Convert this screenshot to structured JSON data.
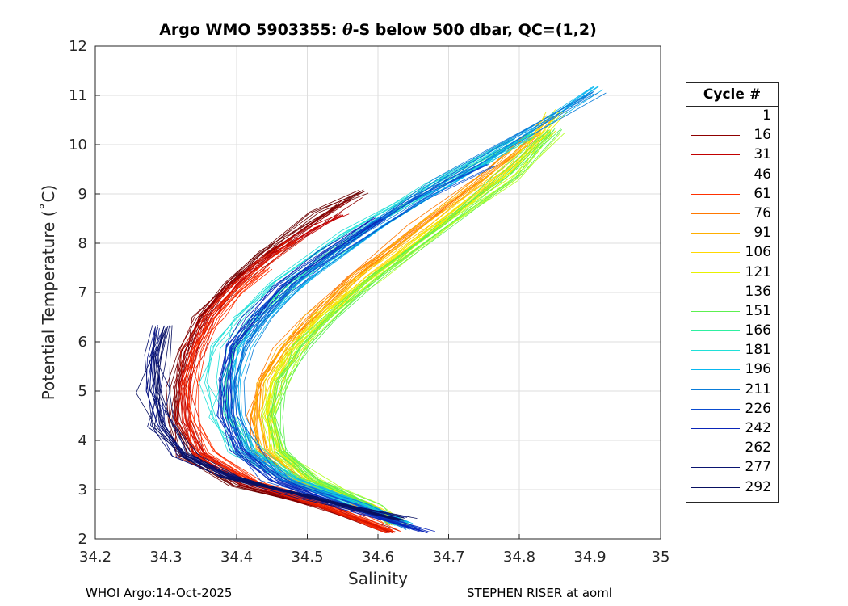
{
  "chart_data": {
    "type": "line",
    "title_prefix": "Argo WMO 5903355: ",
    "title_theta": "θ",
    "title_suffix": "-S below 500 dbar,  QC=(1,2)",
    "xlabel": "Salinity",
    "ylabel": "Potential Temperature (˚C)",
    "xlim": [
      34.2,
      35.0
    ],
    "ylim": [
      2,
      12
    ],
    "xticks": [
      "34.2",
      "34.3",
      "34.4",
      "34.5",
      "34.6",
      "34.7",
      "34.8",
      "34.9",
      "35"
    ],
    "yticks": [
      "2",
      "3",
      "4",
      "5",
      "6",
      "7",
      "8",
      "9",
      "10",
      "11",
      "12"
    ],
    "grid": true,
    "legend_title": "Cycle #",
    "legend_position": "outside-right",
    "legend": [
      {
        "label": "1",
        "color": "#6b0000"
      },
      {
        "label": "16",
        "color": "#8f0000"
      },
      {
        "label": "31",
        "color": "#c20000"
      },
      {
        "label": "46",
        "color": "#e11a00"
      },
      {
        "label": "61",
        "color": "#ff3000"
      },
      {
        "label": "76",
        "color": "#ff7800"
      },
      {
        "label": "91",
        "color": "#ffae00"
      },
      {
        "label": "106",
        "color": "#ffd800"
      },
      {
        "label": "121",
        "color": "#e8f000"
      },
      {
        "label": "136",
        "color": "#b4ff28"
      },
      {
        "label": "151",
        "color": "#5cf050"
      },
      {
        "label": "166",
        "color": "#2ef0a0"
      },
      {
        "label": "181",
        "color": "#20e0d8"
      },
      {
        "label": "196",
        "color": "#08b8f0"
      },
      {
        "label": "211",
        "color": "#0a7cd8"
      },
      {
        "label": "226",
        "color": "#0a4cd0"
      },
      {
        "label": "242",
        "color": "#0a24b8"
      },
      {
        "label": "262",
        "color": "#0a1890"
      },
      {
        "label": "277",
        "color": "#0a1470"
      },
      {
        "label": "292",
        "color": "#081060"
      }
    ],
    "series": [
      {
        "name": "1",
        "color": "#6b0000",
        "profile": [
          [
            34.62,
            2.15
          ],
          [
            34.52,
            2.65
          ],
          [
            34.4,
            3.1
          ],
          [
            34.33,
            3.7
          ],
          [
            34.315,
            4.4
          ],
          [
            34.315,
            5.1
          ],
          [
            34.325,
            5.8
          ],
          [
            34.35,
            6.5
          ],
          [
            34.39,
            7.2
          ],
          [
            34.44,
            7.8
          ],
          [
            34.52,
            8.6
          ],
          [
            34.58,
            9.05
          ]
        ]
      },
      {
        "name": "16",
        "color": "#8f0000",
        "profile": [
          [
            34.62,
            2.15
          ],
          [
            34.52,
            2.65
          ],
          [
            34.41,
            3.1
          ],
          [
            34.34,
            3.7
          ],
          [
            34.32,
            4.4
          ],
          [
            34.32,
            5.1
          ],
          [
            34.33,
            5.8
          ],
          [
            34.355,
            6.5
          ],
          [
            34.395,
            7.2
          ],
          [
            34.45,
            7.8
          ],
          [
            34.52,
            8.5
          ],
          [
            34.56,
            8.9
          ]
        ]
      },
      {
        "name": "31",
        "color": "#c20000",
        "profile": [
          [
            34.62,
            2.15
          ],
          [
            34.53,
            2.65
          ],
          [
            34.42,
            3.15
          ],
          [
            34.345,
            3.75
          ],
          [
            34.325,
            4.4
          ],
          [
            34.325,
            5.1
          ],
          [
            34.335,
            5.8
          ],
          [
            34.36,
            6.5
          ],
          [
            34.4,
            7.2
          ],
          [
            34.45,
            7.8
          ],
          [
            34.51,
            8.3
          ],
          [
            34.55,
            8.6
          ]
        ]
      },
      {
        "name": "46",
        "color": "#e11a00",
        "profile": [
          [
            34.62,
            2.15
          ],
          [
            34.53,
            2.65
          ],
          [
            34.42,
            3.15
          ],
          [
            34.35,
            3.75
          ],
          [
            34.33,
            4.4
          ],
          [
            34.33,
            5.1
          ],
          [
            34.34,
            5.8
          ],
          [
            34.365,
            6.5
          ],
          [
            34.4,
            7.1
          ],
          [
            34.44,
            7.6
          ],
          [
            34.49,
            8.1
          ]
        ]
      },
      {
        "name": "61",
        "color": "#ff3000",
        "profile": [
          [
            34.62,
            2.15
          ],
          [
            34.54,
            2.65
          ],
          [
            34.43,
            3.15
          ],
          [
            34.36,
            3.75
          ],
          [
            34.34,
            4.4
          ],
          [
            34.335,
            5.1
          ],
          [
            34.345,
            5.8
          ],
          [
            34.37,
            6.5
          ],
          [
            34.4,
            7.0
          ],
          [
            34.44,
            7.5
          ]
        ]
      },
      {
        "name": "76",
        "color": "#ff7800",
        "profile": [
          [
            34.62,
            2.3
          ],
          [
            34.57,
            2.7
          ],
          [
            34.48,
            3.2
          ],
          [
            34.43,
            3.8
          ],
          [
            34.42,
            4.5
          ],
          [
            34.43,
            5.2
          ],
          [
            34.46,
            5.9
          ],
          [
            34.5,
            6.5
          ],
          [
            34.56,
            7.3
          ],
          [
            34.66,
            8.4
          ],
          [
            34.75,
            9.4
          ],
          [
            34.82,
            10.2
          ]
        ]
      },
      {
        "name": "91",
        "color": "#ffae00",
        "profile": [
          [
            34.63,
            2.3
          ],
          [
            34.58,
            2.7
          ],
          [
            34.49,
            3.2
          ],
          [
            34.44,
            3.8
          ],
          [
            34.43,
            4.5
          ],
          [
            34.44,
            5.2
          ],
          [
            34.47,
            5.9
          ],
          [
            34.51,
            6.5
          ],
          [
            34.57,
            7.3
          ],
          [
            34.67,
            8.4
          ],
          [
            34.77,
            9.5
          ],
          [
            34.85,
            10.6
          ]
        ]
      },
      {
        "name": "106",
        "color": "#ffd800",
        "profile": [
          [
            34.63,
            2.3
          ],
          [
            34.58,
            2.7
          ],
          [
            34.5,
            3.2
          ],
          [
            34.45,
            3.8
          ],
          [
            34.44,
            4.5
          ],
          [
            34.45,
            5.2
          ],
          [
            34.48,
            5.9
          ],
          [
            34.52,
            6.5
          ],
          [
            34.58,
            7.3
          ],
          [
            34.68,
            8.4
          ],
          [
            34.77,
            9.4
          ],
          [
            34.84,
            10.3
          ]
        ]
      },
      {
        "name": "121",
        "color": "#e8f000",
        "profile": [
          [
            34.63,
            2.3
          ],
          [
            34.58,
            2.7
          ],
          [
            34.5,
            3.2
          ],
          [
            34.455,
            3.8
          ],
          [
            34.445,
            4.5
          ],
          [
            34.455,
            5.2
          ],
          [
            34.485,
            5.9
          ],
          [
            34.525,
            6.5
          ],
          [
            34.59,
            7.3
          ],
          [
            34.69,
            8.4
          ],
          [
            34.79,
            9.5
          ],
          [
            34.86,
            10.7
          ]
        ]
      },
      {
        "name": "136",
        "color": "#b4ff28",
        "profile": [
          [
            34.63,
            2.3
          ],
          [
            34.59,
            2.7
          ],
          [
            34.51,
            3.2
          ],
          [
            34.46,
            3.8
          ],
          [
            34.45,
            4.5
          ],
          [
            34.46,
            5.2
          ],
          [
            34.49,
            5.9
          ],
          [
            34.53,
            6.5
          ],
          [
            34.6,
            7.3
          ],
          [
            34.7,
            8.4
          ],
          [
            34.79,
            9.3
          ],
          [
            34.85,
            10.25
          ]
        ]
      },
      {
        "name": "151",
        "color": "#5cf050",
        "profile": [
          [
            34.63,
            2.3
          ],
          [
            34.59,
            2.7
          ],
          [
            34.51,
            3.2
          ],
          [
            34.465,
            3.8
          ],
          [
            34.455,
            4.5
          ],
          [
            34.465,
            5.2
          ],
          [
            34.495,
            5.9
          ],
          [
            34.54,
            6.5
          ],
          [
            34.6,
            7.3
          ],
          [
            34.7,
            8.4
          ],
          [
            34.79,
            9.4
          ],
          [
            34.85,
            10.3
          ]
        ]
      },
      {
        "name": "166",
        "color": "#2ef0a0",
        "profile": [
          [
            34.63,
            2.3
          ],
          [
            34.58,
            2.7
          ],
          [
            34.49,
            3.2
          ],
          [
            34.42,
            3.8
          ],
          [
            34.39,
            4.5
          ],
          [
            34.385,
            5.2
          ],
          [
            34.4,
            5.9
          ],
          [
            34.43,
            6.5
          ],
          [
            34.49,
            7.3
          ],
          [
            34.6,
            8.4
          ],
          [
            34.72,
            9.4
          ],
          [
            34.82,
            10.2
          ]
        ]
      },
      {
        "name": "181",
        "color": "#20e0d8",
        "profile": [
          [
            34.63,
            2.3
          ],
          [
            34.57,
            2.7
          ],
          [
            34.47,
            3.2
          ],
          [
            34.4,
            3.8
          ],
          [
            34.375,
            4.5
          ],
          [
            34.37,
            5.2
          ],
          [
            34.38,
            5.9
          ],
          [
            34.41,
            6.5
          ],
          [
            34.46,
            7.2
          ],
          [
            34.56,
            8.2
          ],
          [
            34.68,
            9.2
          ],
          [
            34.8,
            10.1
          ]
        ]
      },
      {
        "name": "196",
        "color": "#08b8f0",
        "profile": [
          [
            34.64,
            2.3
          ],
          [
            34.58,
            2.7
          ],
          [
            34.48,
            3.2
          ],
          [
            34.42,
            3.8
          ],
          [
            34.4,
            4.5
          ],
          [
            34.395,
            5.2
          ],
          [
            34.41,
            5.9
          ],
          [
            34.44,
            6.5
          ],
          [
            34.5,
            7.3
          ],
          [
            34.61,
            8.4
          ],
          [
            34.75,
            9.6
          ],
          [
            34.91,
            11.15
          ]
        ]
      },
      {
        "name": "211",
        "color": "#0a7cd8",
        "profile": [
          [
            34.65,
            2.2
          ],
          [
            34.57,
            2.7
          ],
          [
            34.47,
            3.2
          ],
          [
            34.42,
            3.8
          ],
          [
            34.4,
            4.5
          ],
          [
            34.4,
            5.2
          ],
          [
            34.415,
            5.9
          ],
          [
            34.44,
            6.5
          ],
          [
            34.49,
            7.2
          ],
          [
            34.58,
            8.2
          ],
          [
            34.7,
            9.3
          ],
          [
            34.91,
            11.05
          ]
        ]
      },
      {
        "name": "226",
        "color": "#0a4cd0",
        "profile": [
          [
            34.66,
            2.2
          ],
          [
            34.56,
            2.7
          ],
          [
            34.46,
            3.2
          ],
          [
            34.41,
            3.8
          ],
          [
            34.395,
            4.5
          ],
          [
            34.39,
            5.2
          ],
          [
            34.4,
            5.9
          ],
          [
            34.43,
            6.5
          ],
          [
            34.48,
            7.2
          ],
          [
            34.56,
            8.0
          ],
          [
            34.66,
            8.9
          ],
          [
            34.76,
            9.6
          ]
        ]
      },
      {
        "name": "242",
        "color": "#0a24b8",
        "profile": [
          [
            34.67,
            2.15
          ],
          [
            34.55,
            2.65
          ],
          [
            34.45,
            3.2
          ],
          [
            34.4,
            3.8
          ],
          [
            34.38,
            4.5
          ],
          [
            34.38,
            5.2
          ],
          [
            34.39,
            5.9
          ],
          [
            34.42,
            6.5
          ],
          [
            34.46,
            7.1
          ],
          [
            34.52,
            7.8
          ],
          [
            34.6,
            8.5
          ]
        ]
      },
      {
        "name": "262",
        "color": "#0a1890",
        "profile": [
          [
            34.63,
            2.4
          ],
          [
            34.5,
            2.85
          ],
          [
            34.39,
            3.25
          ],
          [
            34.32,
            3.7
          ],
          [
            34.29,
            4.3
          ],
          [
            34.28,
            5.0
          ],
          [
            34.28,
            5.7
          ],
          [
            34.29,
            6.3
          ]
        ]
      },
      {
        "name": "277",
        "color": "#0a1470",
        "profile": [
          [
            34.63,
            2.4
          ],
          [
            34.5,
            2.85
          ],
          [
            34.39,
            3.25
          ],
          [
            34.32,
            3.7
          ],
          [
            34.29,
            4.3
          ],
          [
            34.285,
            5.0
          ],
          [
            34.285,
            5.7
          ],
          [
            34.295,
            6.3
          ]
        ]
      },
      {
        "name": "292",
        "color": "#081060",
        "profile": [
          [
            34.63,
            2.4
          ],
          [
            34.5,
            2.85
          ],
          [
            34.39,
            3.25
          ],
          [
            34.33,
            3.7
          ],
          [
            34.3,
            4.3
          ],
          [
            34.29,
            5.0
          ],
          [
            34.29,
            5.7
          ],
          [
            34.3,
            6.3
          ]
        ]
      }
    ]
  },
  "footer": {
    "left": "WHOI Argo:14-Oct-2025",
    "right": "STEPHEN RISER at aoml"
  }
}
